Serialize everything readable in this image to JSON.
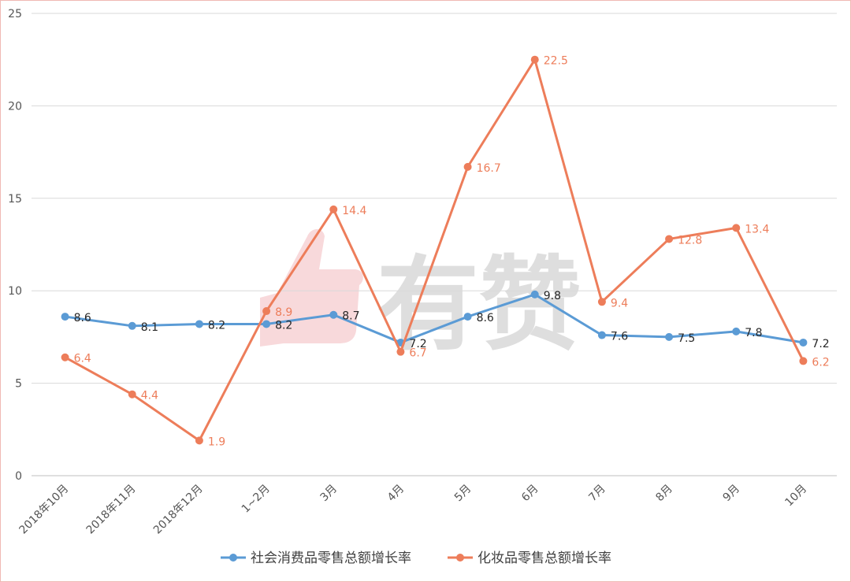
{
  "chart_data": {
    "type": "line",
    "categories": [
      "2018年10月",
      "2018年11月",
      "2018年12月",
      "1~2月",
      "3月",
      "4月",
      "5月",
      "6月",
      "7月",
      "8月",
      "9月",
      "10月"
    ],
    "series": [
      {
        "name": "社会消费品零售总额增长率",
        "color": "#5b9bd5",
        "values": [
          8.6,
          8.1,
          8.2,
          8.2,
          8.7,
          7.2,
          8.6,
          9.8,
          7.6,
          7.5,
          7.8,
          7.2
        ]
      },
      {
        "name": "化妆品零售总额增长率",
        "color": "#ed7d5a",
        "values": [
          6.4,
          4.4,
          1.9,
          8.9,
          14.4,
          6.7,
          16.7,
          22.5,
          9.4,
          12.8,
          13.4,
          6.2
        ]
      }
    ],
    "ylim": [
      0,
      25
    ],
    "yticks": [
      0,
      5,
      10,
      15,
      20,
      25
    ],
    "grid": true,
    "legend": "bottom",
    "watermark": "有赞"
  }
}
